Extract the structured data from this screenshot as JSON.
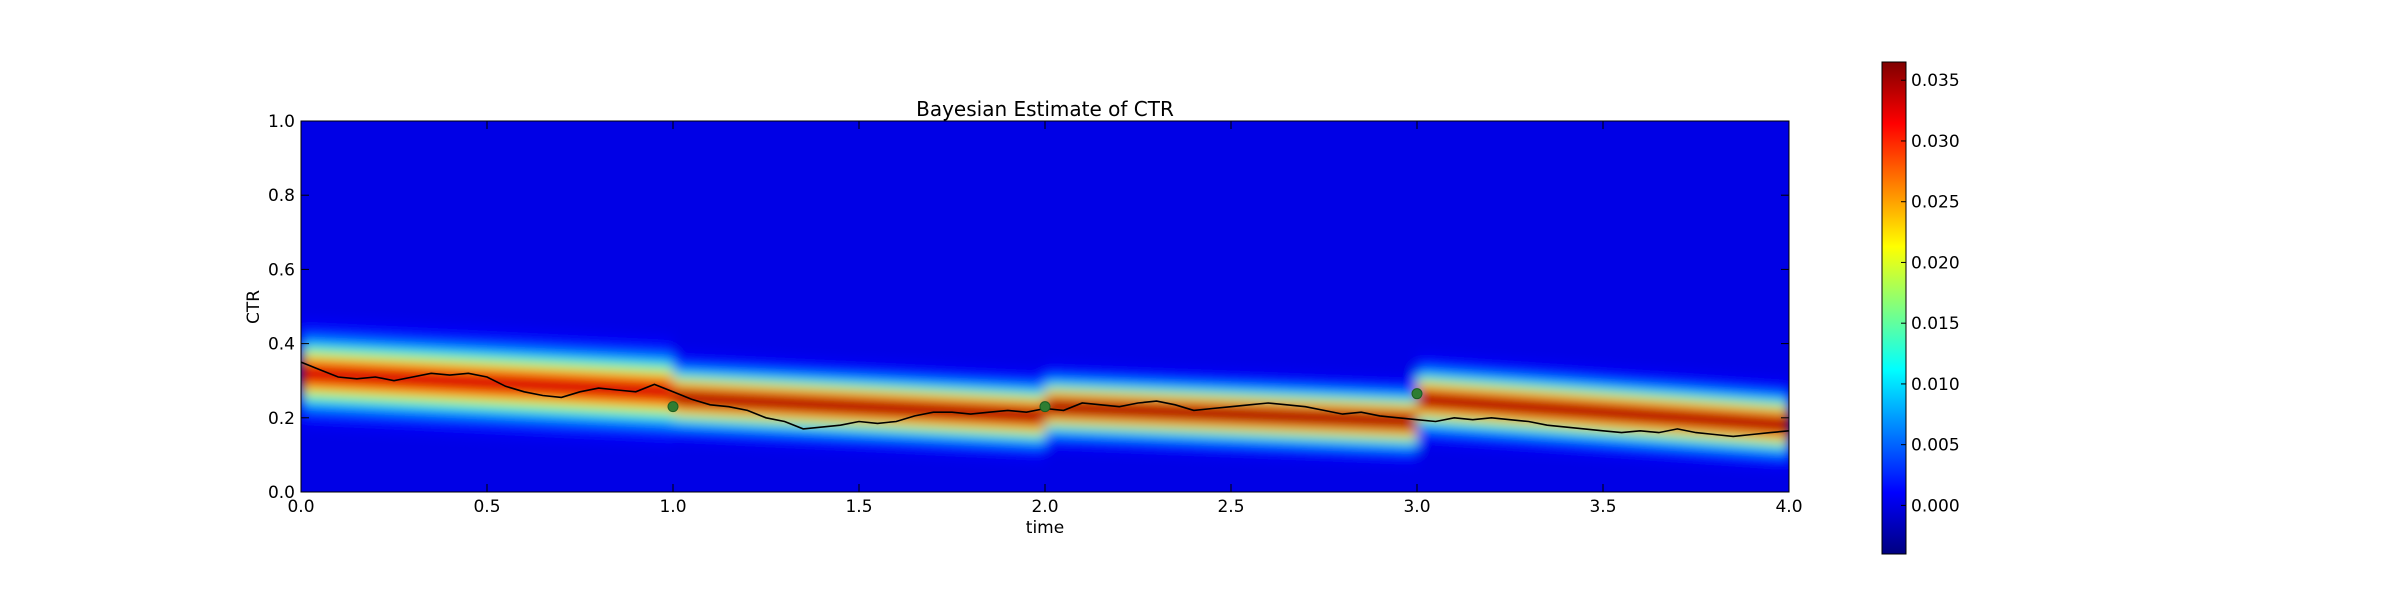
{
  "chart_data": {
    "type": "heatmap",
    "title": "Bayesian Estimate of CTR",
    "xlabel": "time",
    "ylabel": "CTR",
    "xlim": [
      0.0,
      4.0
    ],
    "ylim": [
      0.0,
      1.0
    ],
    "x_ticks": [
      "0.0",
      "0.5",
      "1.0",
      "1.5",
      "2.0",
      "2.5",
      "3.0",
      "3.5",
      "4.0"
    ],
    "y_ticks": [
      "0.0",
      "0.2",
      "0.4",
      "0.6",
      "0.8",
      "1.0"
    ],
    "colormap": "jet",
    "colorbar": {
      "range": [
        -0.004,
        0.0365
      ],
      "ticks": [
        "0.000",
        "0.005",
        "0.010",
        "0.015",
        "0.020",
        "0.025",
        "0.030",
        "0.035"
      ]
    },
    "density_segments": [
      {
        "t_start": 0.0,
        "t_end": 1.0,
        "center_start": 0.32,
        "center_end": 0.27,
        "sigma": 0.048,
        "peak": 0.034
      },
      {
        "t_start": 1.0,
        "t_end": 2.0,
        "center_start": 0.255,
        "center_end": 0.205,
        "sigma": 0.04,
        "peak": 0.036
      },
      {
        "t_start": 2.0,
        "t_end": 3.0,
        "center_start": 0.23,
        "center_end": 0.19,
        "sigma": 0.038,
        "peak": 0.0365
      },
      {
        "t_start": 3.0,
        "t_end": 4.0,
        "center_start": 0.25,
        "center_end": 0.18,
        "sigma": 0.04,
        "peak": 0.036
      }
    ],
    "true_ctr_line": {
      "color": "#000000",
      "points": [
        [
          0.0,
          0.35
        ],
        [
          0.05,
          0.33
        ],
        [
          0.1,
          0.31
        ],
        [
          0.15,
          0.305
        ],
        [
          0.2,
          0.31
        ],
        [
          0.25,
          0.3
        ],
        [
          0.3,
          0.31
        ],
        [
          0.35,
          0.32
        ],
        [
          0.4,
          0.315
        ],
        [
          0.45,
          0.32
        ],
        [
          0.5,
          0.31
        ],
        [
          0.55,
          0.285
        ],
        [
          0.6,
          0.27
        ],
        [
          0.65,
          0.26
        ],
        [
          0.7,
          0.255
        ],
        [
          0.75,
          0.27
        ],
        [
          0.8,
          0.28
        ],
        [
          0.85,
          0.275
        ],
        [
          0.9,
          0.27
        ],
        [
          0.95,
          0.29
        ],
        [
          1.0,
          0.27
        ],
        [
          1.05,
          0.25
        ],
        [
          1.1,
          0.235
        ],
        [
          1.15,
          0.23
        ],
        [
          1.2,
          0.22
        ],
        [
          1.25,
          0.2
        ],
        [
          1.3,
          0.19
        ],
        [
          1.35,
          0.17
        ],
        [
          1.4,
          0.175
        ],
        [
          1.45,
          0.18
        ],
        [
          1.5,
          0.19
        ],
        [
          1.55,
          0.185
        ],
        [
          1.6,
          0.19
        ],
        [
          1.65,
          0.205
        ],
        [
          1.7,
          0.215
        ],
        [
          1.75,
          0.215
        ],
        [
          1.8,
          0.21
        ],
        [
          1.85,
          0.215
        ],
        [
          1.9,
          0.22
        ],
        [
          1.95,
          0.215
        ],
        [
          2.0,
          0.225
        ],
        [
          2.05,
          0.22
        ],
        [
          2.1,
          0.24
        ],
        [
          2.15,
          0.235
        ],
        [
          2.2,
          0.23
        ],
        [
          2.25,
          0.24
        ],
        [
          2.3,
          0.245
        ],
        [
          2.35,
          0.235
        ],
        [
          2.4,
          0.22
        ],
        [
          2.45,
          0.225
        ],
        [
          2.5,
          0.23
        ],
        [
          2.55,
          0.235
        ],
        [
          2.6,
          0.24
        ],
        [
          2.65,
          0.235
        ],
        [
          2.7,
          0.23
        ],
        [
          2.75,
          0.22
        ],
        [
          2.8,
          0.21
        ],
        [
          2.85,
          0.215
        ],
        [
          2.9,
          0.205
        ],
        [
          2.95,
          0.2
        ],
        [
          3.0,
          0.195
        ],
        [
          3.05,
          0.19
        ],
        [
          3.1,
          0.2
        ],
        [
          3.15,
          0.195
        ],
        [
          3.2,
          0.2
        ],
        [
          3.25,
          0.195
        ],
        [
          3.3,
          0.19
        ],
        [
          3.35,
          0.18
        ],
        [
          3.4,
          0.175
        ],
        [
          3.45,
          0.17
        ],
        [
          3.5,
          0.165
        ],
        [
          3.55,
          0.16
        ],
        [
          3.6,
          0.165
        ],
        [
          3.65,
          0.16
        ],
        [
          3.7,
          0.17
        ],
        [
          3.75,
          0.16
        ],
        [
          3.8,
          0.155
        ],
        [
          3.85,
          0.15
        ],
        [
          3.9,
          0.155
        ],
        [
          3.95,
          0.16
        ],
        [
          4.0,
          0.165
        ]
      ]
    },
    "observations": {
      "color": "#2e7d32",
      "points": [
        [
          1.0,
          0.23
        ],
        [
          2.0,
          0.23
        ],
        [
          3.0,
          0.265
        ]
      ]
    }
  }
}
